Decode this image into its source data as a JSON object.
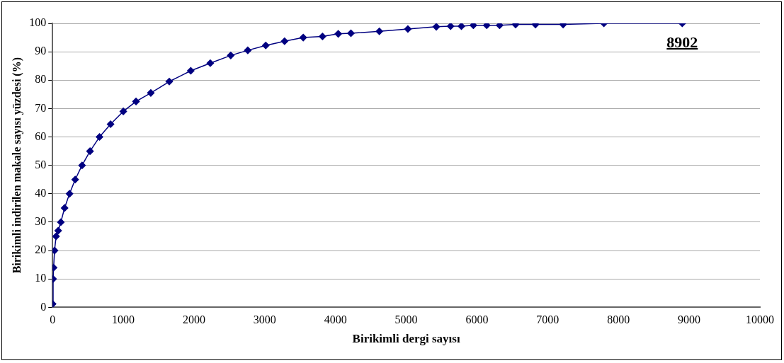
{
  "chart_data": {
    "type": "line",
    "xlabel": "Birikimli dergi sayısı",
    "ylabel": "Birikimli indirilen makale sayısı yüzdesi (%)",
    "series": [
      {
        "color": "#000080",
        "x": [
          1,
          8,
          15,
          28,
          50,
          80,
          117,
          170,
          240,
          320,
          417,
          530,
          664,
          820,
          1000,
          1180,
          1389,
          1650,
          1954,
          2230,
          2519,
          2760,
          3014,
          3280,
          3544,
          3816,
          4039,
          4218,
          4620,
          5023,
          5425,
          5627,
          5780,
          5949,
          6138,
          6320,
          6546,
          6827,
          7218,
          7794,
          8902
        ],
        "values": [
          1.2,
          10,
          14,
          20,
          25,
          27,
          30,
          35,
          40,
          45,
          50,
          55,
          60,
          64.5,
          69,
          72.5,
          75.5,
          79.5,
          83.3,
          86,
          88.7,
          90.5,
          92.2,
          93.7,
          95,
          95.4,
          96.3,
          96.5,
          97.2,
          98,
          98.8,
          99,
          99,
          99.3,
          99.3,
          99.3,
          99.6,
          99.6,
          99.6,
          100,
          100
        ]
      }
    ],
    "xlim": [
      0,
      10000
    ],
    "xticks": [
      0,
      1000,
      2000,
      3000,
      4000,
      5000,
      6000,
      7000,
      8000,
      9000,
      10000
    ],
    "ylim": [
      0,
      100
    ],
    "yticks": [
      0,
      10,
      20,
      30,
      40,
      50,
      60,
      70,
      80,
      90,
      100
    ],
    "grid": "y",
    "marker": "diamond",
    "legend": false,
    "annotations": [
      {
        "text": "8902",
        "x": 8902,
        "y": 100
      }
    ]
  }
}
